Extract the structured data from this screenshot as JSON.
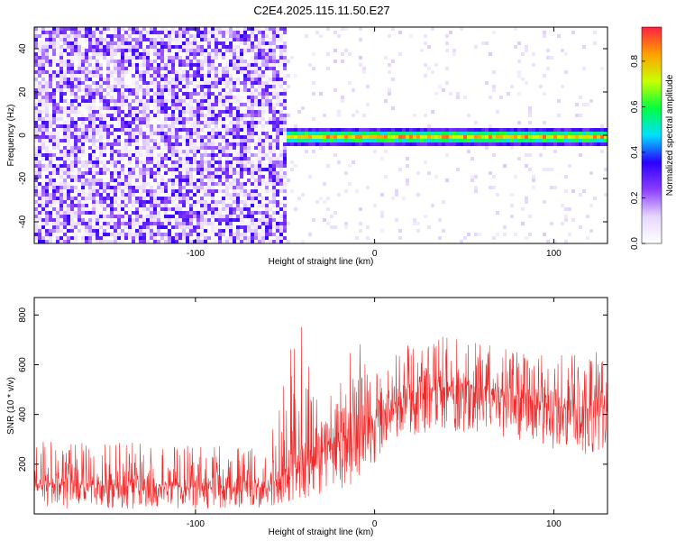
{
  "title": "C2E4.2025.115.11.50.E27",
  "chart_data": [
    {
      "type": "heatmap",
      "xlabel": "Height of straight line (km)",
      "ylabel": "Frequency (Hz)",
      "xlim": [
        -190,
        130
      ],
      "ylim": [
        -50,
        50
      ],
      "xticks": [
        -100,
        0,
        100
      ],
      "yticks": [
        -40,
        -20,
        0,
        20,
        40
      ],
      "colorbar": {
        "label": "Normalized spectral amplitude",
        "range": [
          0.0,
          0.95
        ],
        "ticks": [
          0.0,
          0.2,
          0.4,
          0.6,
          0.8
        ],
        "colors": [
          "#ffffff",
          "#e6d6ff",
          "#8a3cff",
          "#2a00ff",
          "#00e0ff",
          "#00ff40",
          "#c8ff00",
          "#ffa000",
          "#ff2040"
        ]
      },
      "regions": [
        {
          "description_x_range": [
            -190,
            -51
          ],
          "pattern": "broadband noise",
          "amplitude_range": [
            0.05,
            0.25
          ]
        },
        {
          "description_x_range": [
            -51,
            130
          ],
          "pattern": "narrow band at 0 Hz",
          "band_center_hz": 0,
          "band_halfwidth_hz": 3,
          "peak_amplitude": 0.9
        }
      ]
    },
    {
      "type": "line",
      "xlabel": "Height of straight line (km)",
      "ylabel": "SNR (10 * v/v)",
      "xlim": [
        -190,
        130
      ],
      "ylim": [
        0,
        870
      ],
      "xticks": [
        -100,
        0,
        100
      ],
      "yticks": [
        200,
        400,
        600,
        800
      ],
      "color": "#ee2a2a",
      "envelope": [
        {
          "x": -190,
          "low": 20,
          "high": 300,
          "mid": 120
        },
        {
          "x": -150,
          "low": 20,
          "high": 290,
          "mid": 115
        },
        {
          "x": -100,
          "low": 20,
          "high": 280,
          "mid": 110
        },
        {
          "x": -60,
          "low": 20,
          "high": 270,
          "mid": 105
        },
        {
          "x": -40,
          "low": 30,
          "high": 870,
          "mid": 230
        },
        {
          "x": -30,
          "low": 80,
          "high": 460,
          "mid": 260
        },
        {
          "x": -20,
          "low": 100,
          "high": 500,
          "mid": 300
        },
        {
          "x": -10,
          "low": 120,
          "high": 860,
          "mid": 330
        },
        {
          "x": 0,
          "low": 200,
          "high": 560,
          "mid": 380
        },
        {
          "x": 10,
          "low": 280,
          "high": 640,
          "mid": 420
        },
        {
          "x": 30,
          "low": 330,
          "high": 730,
          "mid": 500
        },
        {
          "x": 50,
          "low": 330,
          "high": 700,
          "mid": 520
        },
        {
          "x": 80,
          "low": 300,
          "high": 660,
          "mid": 470
        },
        {
          "x": 110,
          "low": 240,
          "high": 640,
          "mid": 420
        },
        {
          "x": 130,
          "low": 240,
          "high": 660,
          "mid": 430
        }
      ]
    }
  ]
}
